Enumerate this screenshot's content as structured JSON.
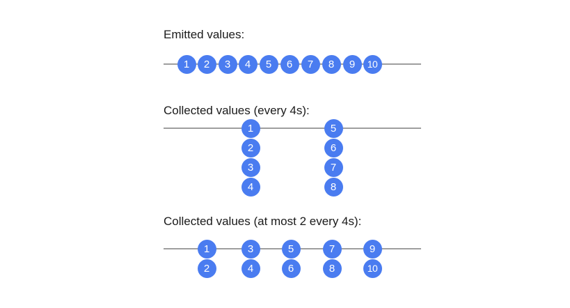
{
  "sections": [
    {
      "title": "Emitted values:",
      "groups": [
        [
          "1"
        ],
        [
          "2"
        ],
        [
          "3"
        ],
        [
          "4"
        ],
        [
          "5"
        ],
        [
          "6"
        ],
        [
          "7"
        ],
        [
          "8"
        ],
        [
          "9"
        ],
        [
          "10"
        ]
      ]
    },
    {
      "title": "Collected values (every 4s):",
      "groups": [
        [
          "1",
          "2",
          "3",
          "4"
        ],
        [
          "5",
          "6",
          "7",
          "8"
        ]
      ]
    },
    {
      "title": "Collected values (at most 2 every 4s):",
      "groups": [
        [
          "1",
          "2"
        ],
        [
          "3",
          "4"
        ],
        [
          "5",
          "6"
        ],
        [
          "7",
          "8"
        ],
        [
          "9",
          "10"
        ]
      ]
    }
  ],
  "colors": {
    "bubble": "#4a7cf0",
    "line": "#9e9e9e",
    "text": "#1a1a1a"
  }
}
